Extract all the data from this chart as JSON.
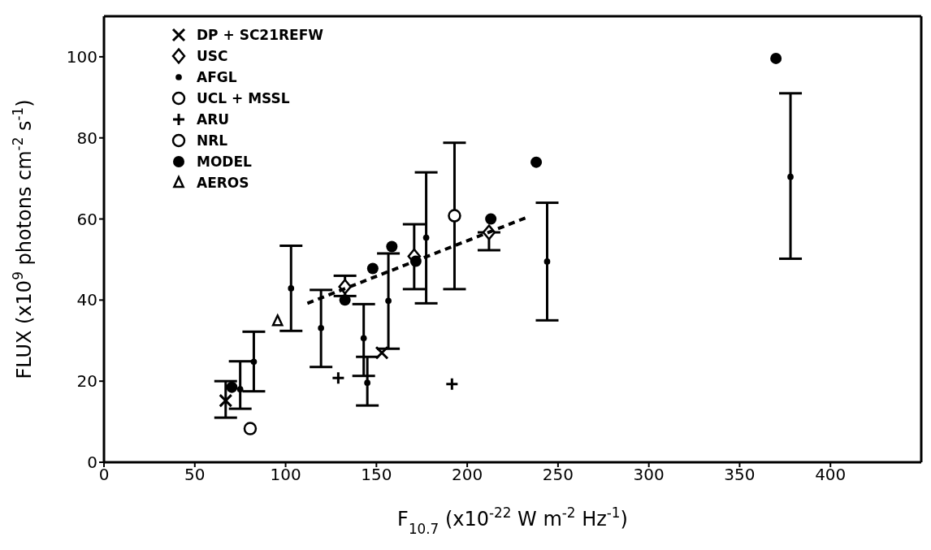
{
  "chart_data": {
    "type": "scatter",
    "xlabel": "F$_{10.7}$ (x10$^{-22}$ W m$^{-2}$ Hz$^{-1}$)",
    "ylabel": "FLUX (x10$^{9}$ photons cm$^{-2}$ s$^{-1}$)",
    "xlim": [
      0,
      450
    ],
    "xticks": [
      0,
      50,
      100,
      150,
      200,
      250,
      300,
      350,
      400
    ],
    "ylim": [
      0,
      110
    ],
    "yticks": [
      0,
      20,
      40,
      60,
      80,
      100
    ],
    "legend": "top left",
    "series": [
      {
        "name": "DP + SC21REFW",
        "color": "#000000",
        "marker": "cross",
        "x": [
          67,
          153
        ],
        "values": [
          15.2,
          27
        ],
        "errors": [
          [
            11,
            20
          ],
          null
        ]
      },
      {
        "name": "USC",
        "color": "#000000",
        "marker": "diamond",
        "x": [
          132.7,
          170.8,
          212
        ],
        "values": [
          43.3,
          50.8,
          56.7
        ],
        "errors": [
          [
            41,
            46
          ],
          [
            42.7,
            58.7
          ],
          [
            52.3,
            56.7
          ]
        ]
      },
      {
        "name": "AFGL",
        "color": "#000000",
        "marker": "point",
        "x": [
          75,
          82.5,
          103,
          119.5,
          143,
          145,
          156.6,
          177.4,
          244,
          378
        ],
        "values": [
          18,
          24.8,
          42.9,
          33.1,
          30.6,
          19.6,
          39.8,
          55.4,
          49.5,
          70.4
        ],
        "errors": [
          [
            13.2,
            24.9
          ],
          [
            17.5,
            32.2
          ],
          [
            32.4,
            53.4
          ],
          [
            23.5,
            42.5
          ],
          [
            21.3,
            39
          ],
          [
            14,
            26
          ],
          [
            28,
            51.5
          ],
          [
            39.2,
            71.5
          ],
          [
            35,
            64
          ],
          [
            50.2,
            91
          ]
        ]
      },
      {
        "name": "UCL + MSSL",
        "color": "#000000",
        "marker": "circle",
        "x": [
          193
        ],
        "values": [
          60.8
        ],
        "errors": [
          [
            42.7,
            78.8
          ]
        ]
      },
      {
        "name": "ARU",
        "color": "#000000",
        "marker": "plus",
        "x": [
          129,
          191.6
        ],
        "values": [
          20.8,
          19.3
        ]
      },
      {
        "name": "NRL",
        "color": "#000000",
        "marker": "circle",
        "x": [
          80.5
        ],
        "values": [
          8.3
        ]
      },
      {
        "name": "MODEL",
        "color": "#000000",
        "marker": "dot",
        "x": [
          70.4,
          132.7,
          148,
          158.5,
          171.7,
          213,
          238,
          370
        ],
        "values": [
          18.5,
          40,
          47.8,
          53.2,
          49.6,
          60,
          74,
          99.6
        ]
      },
      {
        "name": "AEROS",
        "color": "#000000",
        "marker": "triangle",
        "x": [
          95.6
        ],
        "values": [
          34.8
        ]
      },
      {
        "type": "line",
        "color": "#000000",
        "marker": "none",
        "line_style": "dashed",
        "x": [
          112,
          234
        ],
        "values": [
          39.2,
          60.6
        ]
      }
    ]
  }
}
